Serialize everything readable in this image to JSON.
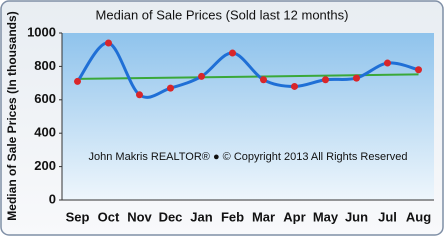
{
  "chart_data": {
    "type": "line",
    "title": "Median of Sale Prices (Sold last 12 months)",
    "y_label": "Median of Sale Prices (In thousands)",
    "annotation": "John Makris REALTOR® ● © Copyright 2013 All Rights Reserved",
    "categories": [
      "Sep",
      "Oct",
      "Nov",
      "Dec",
      "Jan",
      "Feb",
      "Mar",
      "Apr",
      "May",
      "Jun",
      "Jul",
      "Aug"
    ],
    "series": [
      {
        "name": "Median Sale Price",
        "color": "#1f6fd6",
        "marker_color": "#d9262a",
        "values": [
          710,
          940,
          630,
          670,
          740,
          880,
          720,
          680,
          720,
          730,
          820,
          780
        ]
      }
    ],
    "trendline": {
      "color": "#3aa83a",
      "values": [
        725,
        752
      ]
    },
    "ylim": [
      0,
      1000
    ],
    "yticks": [
      0,
      200,
      400,
      600,
      800,
      1000
    ],
    "grid": false
  }
}
